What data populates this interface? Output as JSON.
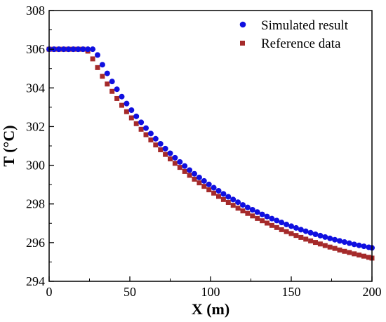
{
  "chart_data": {
    "type": "scatter",
    "title": "",
    "xlabel": "X (m)",
    "ylabel": "T (°C)",
    "xlim": [
      0,
      200
    ],
    "ylim": [
      294,
      308
    ],
    "x_ticks": [
      0,
      50,
      100,
      150,
      200
    ],
    "y_ticks": [
      294,
      296,
      298,
      300,
      302,
      304,
      306,
      308
    ],
    "grid": false,
    "legend_position": "top-right",
    "series": [
      {
        "name": "Simulated result",
        "marker": "circle",
        "color": "#1010e0",
        "x": [
          0,
          3,
          6,
          9,
          12,
          15,
          18,
          21,
          24,
          27,
          30,
          33,
          36,
          39,
          42,
          45,
          48,
          51,
          54,
          57,
          60,
          63,
          66,
          69,
          72,
          75,
          78,
          81,
          84,
          87,
          90,
          93,
          96,
          99,
          102,
          105,
          108,
          111,
          114,
          117,
          120,
          123,
          126,
          129,
          132,
          135,
          138,
          141,
          144,
          147,
          150,
          153,
          156,
          159,
          162,
          165,
          168,
          171,
          174,
          177,
          180,
          183,
          186,
          189,
          192,
          195,
          198,
          200
        ],
        "y": [
          306.0,
          306.0,
          306.0,
          306.0,
          306.0,
          306.0,
          306.0,
          306.0,
          306.0,
          306.0,
          305.7,
          305.2,
          304.75,
          304.33,
          303.93,
          303.55,
          303.19,
          302.85,
          302.53,
          302.22,
          301.92,
          301.64,
          301.37,
          301.11,
          300.86,
          300.62,
          300.39,
          300.17,
          299.96,
          299.75,
          299.56,
          299.37,
          299.19,
          299.01,
          298.84,
          298.68,
          298.52,
          298.37,
          298.23,
          298.09,
          297.95,
          297.82,
          297.7,
          297.58,
          297.46,
          297.35,
          297.24,
          297.14,
          297.04,
          296.94,
          296.85,
          296.76,
          296.67,
          296.59,
          296.51,
          296.43,
          296.36,
          296.29,
          296.22,
          296.15,
          296.09,
          296.03,
          295.97,
          295.91,
          295.86,
          295.81,
          295.76,
          295.73
        ]
      },
      {
        "name": "Reference data",
        "marker": "square",
        "color": "#a52a2a",
        "x": [
          0,
          3,
          6,
          9,
          12,
          15,
          18,
          21,
          24,
          27,
          30,
          33,
          36,
          39,
          42,
          45,
          48,
          51,
          54,
          57,
          60,
          63,
          66,
          69,
          72,
          75,
          78,
          81,
          84,
          87,
          90,
          93,
          96,
          99,
          102,
          105,
          108,
          111,
          114,
          117,
          120,
          123,
          126,
          129,
          132,
          135,
          138,
          141,
          144,
          147,
          150,
          153,
          156,
          159,
          162,
          165,
          168,
          171,
          174,
          177,
          180,
          183,
          186,
          189,
          192,
          195,
          198,
          200
        ],
        "y": [
          306.0,
          306.0,
          306.0,
          306.0,
          306.0,
          306.0,
          306.0,
          306.0,
          305.9,
          305.5,
          305.05,
          304.6,
          304.2,
          303.82,
          303.45,
          303.1,
          302.77,
          302.45,
          302.15,
          301.86,
          301.58,
          301.31,
          301.05,
          300.8,
          300.56,
          300.33,
          300.1,
          299.89,
          299.68,
          299.48,
          299.28,
          299.09,
          298.91,
          298.73,
          298.56,
          298.39,
          298.23,
          298.08,
          297.93,
          297.78,
          297.64,
          297.51,
          297.38,
          297.25,
          297.13,
          297.01,
          296.89,
          296.78,
          296.67,
          296.57,
          296.47,
          296.37,
          296.27,
          296.18,
          296.09,
          296.01,
          295.93,
          295.85,
          295.77,
          295.7,
          295.62,
          295.55,
          295.49,
          295.42,
          295.36,
          295.3,
          295.24,
          295.2
        ]
      }
    ]
  }
}
